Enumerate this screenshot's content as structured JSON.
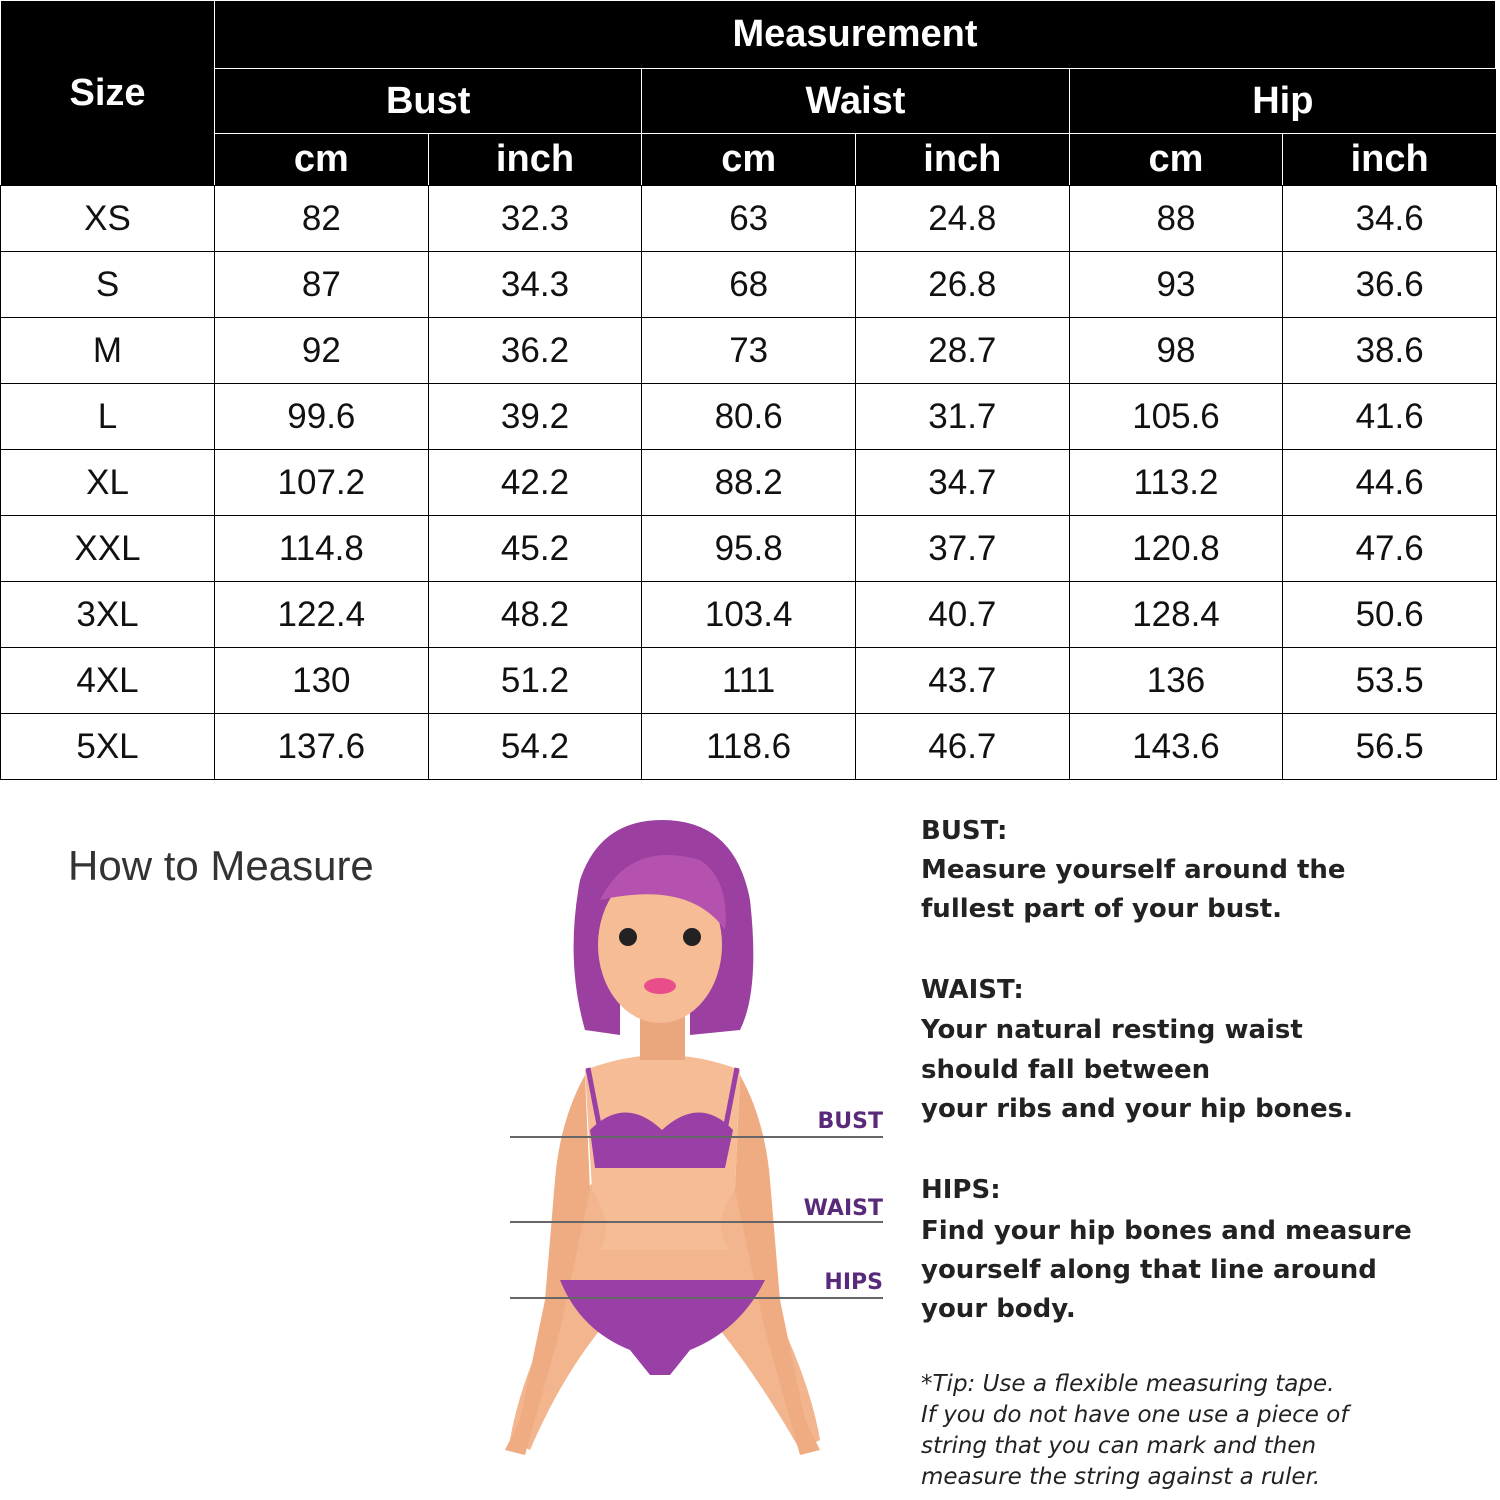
{
  "table": {
    "header": {
      "size": "Size",
      "measurement": "Measurement",
      "groups": [
        "Bust",
        "Waist",
        "Hip"
      ],
      "units": [
        "cm",
        "inch",
        "cm",
        "inch",
        "cm",
        "inch"
      ]
    },
    "rows": [
      [
        "XS",
        "82",
        "32.3",
        "63",
        "24.8",
        "88",
        "34.6"
      ],
      [
        "S",
        "87",
        "34.3",
        "68",
        "26.8",
        "93",
        "36.6"
      ],
      [
        "M",
        "92",
        "36.2",
        "73",
        "28.7",
        "98",
        "38.6"
      ],
      [
        "L",
        "99.6",
        "39.2",
        "80.6",
        "31.7",
        "105.6",
        "41.6"
      ],
      [
        "XL",
        "107.2",
        "42.2",
        "88.2",
        "34.7",
        "113.2",
        "44.6"
      ],
      [
        "XXL",
        "114.8",
        "45.2",
        "95.8",
        "37.7",
        "120.8",
        "47.6"
      ],
      [
        "3XL",
        "122.4",
        "48.2",
        "103.4",
        "40.7",
        "128.4",
        "50.6"
      ],
      [
        "4XL",
        "130",
        "51.2",
        "111",
        "43.7",
        "136",
        "53.5"
      ],
      [
        "5XL",
        "137.6",
        "54.2",
        "118.6",
        "46.7",
        "143.6",
        "56.5"
      ]
    ]
  },
  "guide": {
    "title": "How to Measure",
    "figure_labels": [
      "BUST",
      "WAIST",
      "HIPS"
    ],
    "sections": [
      {
        "heading": "BUST:",
        "lines": [
          "Measure yourself around the",
          "fullest part of your bust."
        ]
      },
      {
        "heading": "WAIST:",
        "lines": [
          "Your natural resting waist",
          "should fall between",
          "your ribs and your hip bones."
        ]
      },
      {
        "heading": "HIPS:",
        "lines": [
          "Find your hip bones and measure",
          "yourself along that line around",
          "your body."
        ]
      }
    ],
    "tip": [
      "*Tip: Use a flexible measuring tape.",
      "If you do not have one use a piece of",
      "string that you can mark and then",
      "measure the string against a ruler."
    ]
  }
}
